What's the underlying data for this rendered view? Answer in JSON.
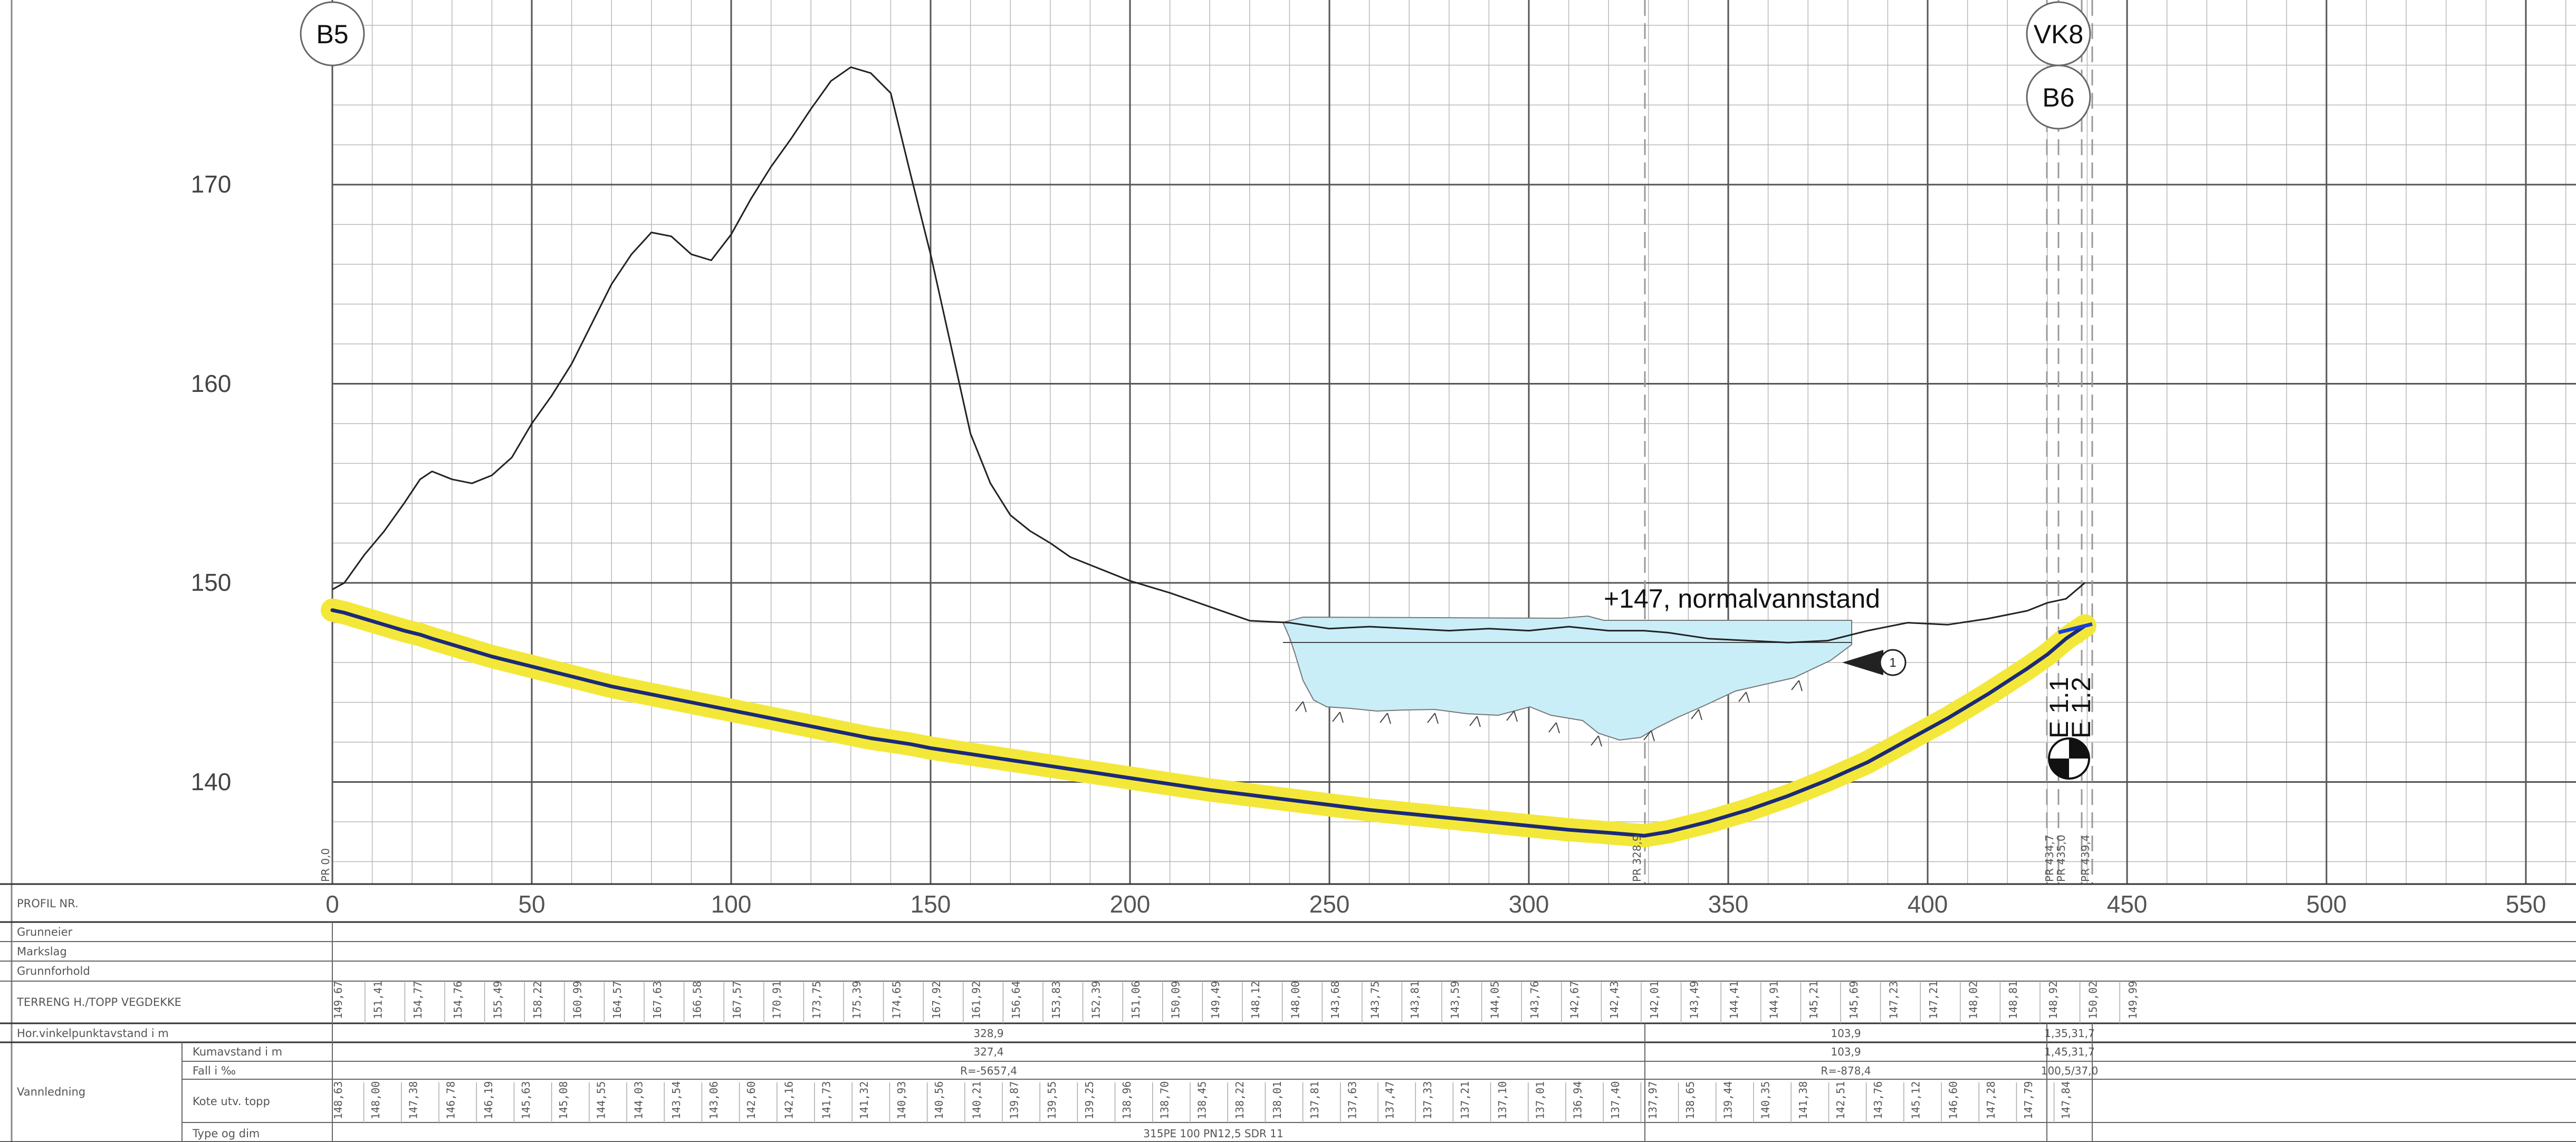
{
  "markers": {
    "left": "B5",
    "right_top": "VK8",
    "right_bottom": "B6"
  },
  "y_axis": {
    "labels": [
      "170",
      "160",
      "150",
      "140"
    ],
    "values": [
      170,
      160,
      150,
      140
    ]
  },
  "x_axis": {
    "labels": [
      "0",
      "50",
      "100",
      "150",
      "200",
      "250",
      "300",
      "350",
      "400",
      "450",
      "500",
      "550"
    ],
    "values": [
      0,
      50,
      100,
      150,
      200,
      250,
      300,
      350,
      400,
      450,
      500,
      550
    ]
  },
  "water": {
    "label": "+147, normalvannstand",
    "elevation": 147,
    "sign": "1"
  },
  "valves": {
    "label_1": "E 1.1",
    "label_2": "E 1.2"
  },
  "chainage_marks": {
    "start": "PR 0,0",
    "mid": "PR 328,9",
    "end_1": "PR 434,7",
    "end_2": "PR 435,0",
    "end_3": "PR 439,4"
  },
  "row_labels": {
    "profil_nr": "PROFIL NR.",
    "grunneier": "Grunneier",
    "markslag": "Markslag",
    "grunnforhold": "Grunnforhold",
    "terreng": "TERRENG H./TOPP VEGDEKKE",
    "hor_vinkel": "Hor.vinkelpunktavstand i m",
    "group": "Vannledning",
    "kumavstand": "Kumavstand i m",
    "fall": "Fall i ‰",
    "kote": "Kote utv. topp",
    "type": "Type og dim"
  },
  "terrain_values": [
    "149,67",
    "151,41",
    "154,77",
    "154,76",
    "155,49",
    "158,22",
    "160,99",
    "164,57",
    "167,63",
    "166,58",
    "167,57",
    "170,91",
    "173,75",
    "175,39",
    "174,65",
    "167,92",
    "161,92",
    "156,64",
    "153,83",
    "152,39",
    "151,06",
    "150,09",
    "149,49",
    "148,12",
    "148,00",
    "143,68",
    "143,75",
    "143,81",
    "143,59",
    "144,05",
    "143,76",
    "142,67",
    "142,43",
    "142,01",
    "143,49",
    "144,41",
    "144,91",
    "145,21",
    "145,69",
    "147,23",
    "147,21",
    "148,02",
    "148,81",
    "148,92",
    "150,02",
    "149,99"
  ],
  "kote_values": [
    "148,63",
    "148,00",
    "147,38",
    "146,78",
    "146,19",
    "145,63",
    "145,08",
    "144,55",
    "144,03",
    "143,54",
    "143,06",
    "142,60",
    "142,16",
    "141,73",
    "141,32",
    "140,93",
    "140,56",
    "140,21",
    "139,87",
    "139,55",
    "139,25",
    "138,96",
    "138,70",
    "138,45",
    "138,22",
    "138,01",
    "137,81",
    "137,63",
    "137,47",
    "137,33",
    "137,21",
    "137,10",
    "137,01",
    "136,94",
    "137,40",
    "137,97",
    "138,65",
    "139,44",
    "140,35",
    "141,38",
    "142,51",
    "143,76",
    "145,12",
    "146,60",
    "147,28",
    "147,79",
    "147,84"
  ],
  "hor_vinkel_values": [
    "328,9",
    "103,9",
    "1,35,31,7"
  ],
  "kumavstand_values": [
    "327,4",
    "103,9",
    "1,45,31,7"
  ],
  "fall_values": [
    "R=-5657,4",
    "R=-878,4",
    "100,5/37,0"
  ],
  "type_value": "315PE 100 PN12,5 SDR 11",
  "chart_data": {
    "type": "line",
    "x": [
      0,
      3,
      8,
      13,
      18,
      22,
      25,
      30,
      35,
      40,
      45,
      50,
      55,
      60,
      65,
      70,
      75,
      80,
      85,
      90,
      95,
      100,
      105,
      110,
      115,
      120,
      125,
      130,
      135,
      140,
      145,
      150,
      155,
      160,
      165,
      170,
      175,
      180,
      185,
      190,
      200,
      210,
      220,
      230,
      240,
      250,
      260,
      270,
      280,
      290,
      300,
      310,
      320,
      328.9,
      335,
      345,
      355,
      365,
      375,
      385,
      395,
      405,
      415,
      425,
      430,
      434.7,
      439.4
    ],
    "series": [
      {
        "values": [
          149.67,
          150.0,
          151.4,
          152.6,
          154.0,
          155.2,
          155.6,
          155.2,
          155.0,
          155.4,
          156.3,
          158.0,
          159.4,
          161.0,
          163.0,
          165.0,
          166.5,
          167.6,
          167.4,
          166.5,
          166.2,
          167.5,
          169.3,
          170.9,
          172.3,
          173.8,
          175.2,
          175.9,
          175.6,
          174.6,
          170.5,
          166.5,
          162.0,
          157.5,
          155.0,
          153.4,
          152.6,
          152.0,
          151.3,
          150.9,
          150.1,
          149.5,
          148.8,
          148.1,
          148.0,
          147.7,
          147.8,
          147.7,
          147.6,
          147.7,
          147.6,
          147.8,
          147.6,
          147.6,
          147.5,
          147.2,
          147.1,
          147.0,
          147.1,
          147.6,
          148.0,
          147.9,
          148.2,
          148.6,
          149.0,
          149.2,
          150.0
        ]
      },
      {
        "values": [
          148.63,
          148.5,
          148.2,
          147.9,
          147.6,
          147.4,
          147.2,
          146.9,
          146.6,
          146.3,
          146.05,
          145.8,
          145.55,
          145.3,
          145.05,
          144.8,
          144.6,
          144.4,
          144.2,
          144.0,
          143.8,
          143.6,
          143.4,
          143.2,
          143.0,
          142.8,
          142.6,
          142.4,
          142.2,
          142.05,
          141.9,
          141.7,
          141.55,
          141.4,
          141.25,
          141.1,
          140.95,
          140.8,
          140.65,
          140.5,
          140.2,
          139.9,
          139.6,
          139.35,
          139.1,
          138.85,
          138.6,
          138.4,
          138.2,
          138.0,
          137.8,
          137.6,
          137.45,
          137.3,
          137.5,
          138.0,
          138.6,
          139.3,
          140.1,
          141.0,
          142.1,
          143.2,
          144.4,
          145.7,
          146.4,
          147.2,
          147.84
        ]
      }
    ],
    "ylim": [
      135,
      180
    ],
    "xlim": [
      0,
      560
    ],
    "grid": true
  }
}
